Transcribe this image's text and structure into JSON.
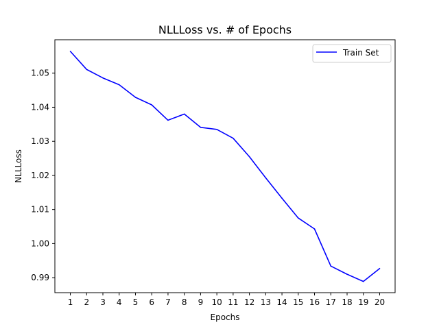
{
  "chart_data": {
    "type": "line",
    "title": "NLLLoss vs. # of Epochs",
    "xlabel": "Epochs",
    "ylabel": "NLLLoss",
    "x": [
      1,
      2,
      3,
      4,
      5,
      6,
      7,
      8,
      9,
      10,
      11,
      12,
      13,
      14,
      15,
      16,
      17,
      18,
      19,
      20
    ],
    "series": [
      {
        "name": "Train Set",
        "color": "#0000ff",
        "values": [
          1.0564,
          1.0511,
          1.0486,
          1.0466,
          1.0429,
          1.0407,
          1.0362,
          1.038,
          1.0341,
          1.0335,
          1.0309,
          1.0255,
          1.0193,
          1.0133,
          1.0075,
          1.0043,
          0.9934,
          0.991,
          0.9889,
          0.9927
        ]
      }
    ],
    "xticks": [
      "1",
      "2",
      "3",
      "4",
      "5",
      "6",
      "7",
      "8",
      "9",
      "10",
      "11",
      "12",
      "13",
      "14",
      "15",
      "16",
      "17",
      "18",
      "19",
      "20"
    ],
    "yticks": [
      0.99,
      1.0,
      1.01,
      1.02,
      1.03,
      1.04,
      1.05
    ],
    "ytick_labels": [
      "0.99",
      "1.00",
      "1.01",
      "1.02",
      "1.03",
      "1.04",
      "1.05"
    ],
    "xlim": [
      0.05,
      20.95
    ],
    "ylim": [
      0.9856,
      1.0598
    ],
    "grid": false,
    "legend_position": "top-right"
  }
}
